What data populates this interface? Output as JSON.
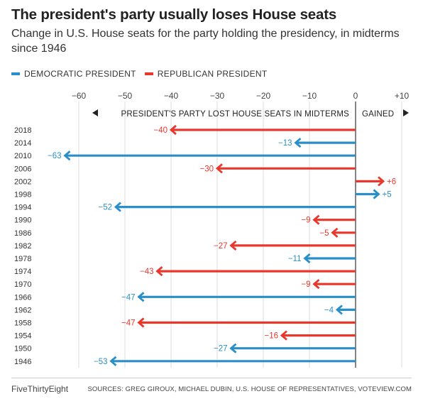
{
  "title": "The president's party usually loses House seats",
  "subtitle": "Change in U.S. House seats for the party holding the presidency, in midterms since 1946",
  "legend": {
    "dem_label": "DEMOCRATIC PRESIDENT",
    "rep_label": "REPUBLICAN PRESIDENT"
  },
  "colors": {
    "dem": "#2a8fc9",
    "rep": "#e8372c"
  },
  "annotations": {
    "lost": "PRESIDENT'S PARTY LOST HOUSE SEATS IN MIDTERMS",
    "gained": "GAINED"
  },
  "footer": {
    "brand": "FiveThirtyEight",
    "source": "SOURCES: GREG GIROUX, MICHAEL DUBIN, U.S. HOUSE OF REPRESENTATIVES, VOTEVIEW.COM"
  },
  "chart_data": {
    "type": "bar",
    "orientation": "horizontal",
    "xlim": [
      -60,
      10
    ],
    "x_ticks": [
      "−60",
      "−50",
      "−40",
      "−30",
      "−20",
      "−10",
      "0",
      "+10"
    ],
    "x_tick_values": [
      -60,
      -50,
      -40,
      -30,
      -20,
      -10,
      0,
      10
    ],
    "grid": true,
    "legend_position": "top-left",
    "categories": [
      "2018",
      "2014",
      "2010",
      "2006",
      "2002",
      "1998",
      "1994",
      "1990",
      "1986",
      "1982",
      "1978",
      "1974",
      "1970",
      "1966",
      "1962",
      "1958",
      "1954",
      "1950",
      "1946"
    ],
    "values": [
      -40,
      -13,
      -63,
      -30,
      6,
      5,
      -52,
      -9,
      -5,
      -27,
      -11,
      -43,
      -9,
      -47,
      -4,
      -47,
      -16,
      -27,
      -53
    ],
    "value_labels": [
      "−40",
      "−13",
      "−63",
      "−30",
      "+6",
      "+5",
      "−52",
      "−9",
      "−5",
      "−27",
      "−11",
      "−43",
      "−9",
      "−47",
      "−4",
      "−47",
      "−16",
      "−27",
      "−53"
    ],
    "party": [
      "rep",
      "dem",
      "dem",
      "rep",
      "rep",
      "dem",
      "dem",
      "rep",
      "rep",
      "rep",
      "dem",
      "rep",
      "rep",
      "dem",
      "dem",
      "rep",
      "rep",
      "dem",
      "dem"
    ],
    "series": [
      {
        "name": "DEMOCRATIC PRESIDENT",
        "key": "dem"
      },
      {
        "name": "REPUBLICAN PRESIDENT",
        "key": "rep"
      }
    ]
  }
}
